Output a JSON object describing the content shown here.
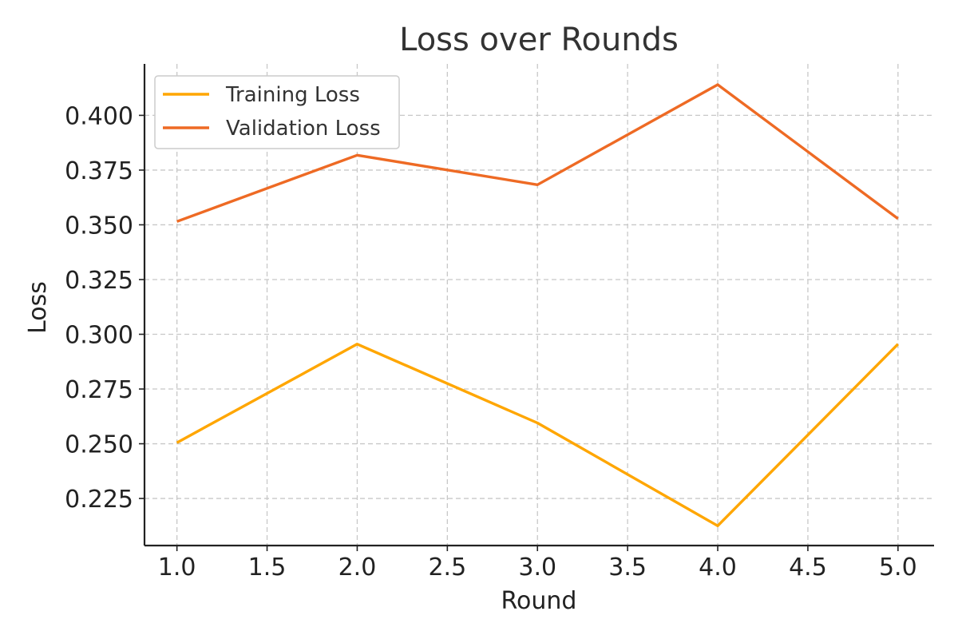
{
  "chart_data": {
    "type": "line",
    "title": "Loss over Rounds",
    "xlabel": "Round",
    "ylabel": "Loss",
    "x": [
      1,
      2,
      3,
      4,
      5
    ],
    "xlim": [
      0.82,
      5.2
    ],
    "ylim": [
      0.2035,
      0.4235
    ],
    "xticks": [
      1.0,
      1.5,
      2.0,
      2.5,
      3.0,
      3.5,
      4.0,
      4.5,
      5.0
    ],
    "xtick_labels": [
      "1.0",
      "1.5",
      "2.0",
      "2.5",
      "3.0",
      "3.5",
      "4.0",
      "4.5",
      "5.0"
    ],
    "yticks": [
      0.225,
      0.25,
      0.275,
      0.3,
      0.325,
      0.35,
      0.375,
      0.4
    ],
    "ytick_labels": [
      "0.225",
      "0.250",
      "0.275",
      "0.300",
      "0.325",
      "0.350",
      "0.375",
      "0.400"
    ],
    "grid": true,
    "legend_position": "top-left",
    "series": [
      {
        "name": "Training Loss",
        "color": "#FFA600",
        "values": [
          0.2505,
          0.2955,
          0.2595,
          0.2125,
          0.2955
        ]
      },
      {
        "name": "Validation Loss",
        "color": "#EE6A24",
        "values": [
          0.3515,
          0.3818,
          0.3683,
          0.414,
          0.3528
        ]
      }
    ]
  }
}
